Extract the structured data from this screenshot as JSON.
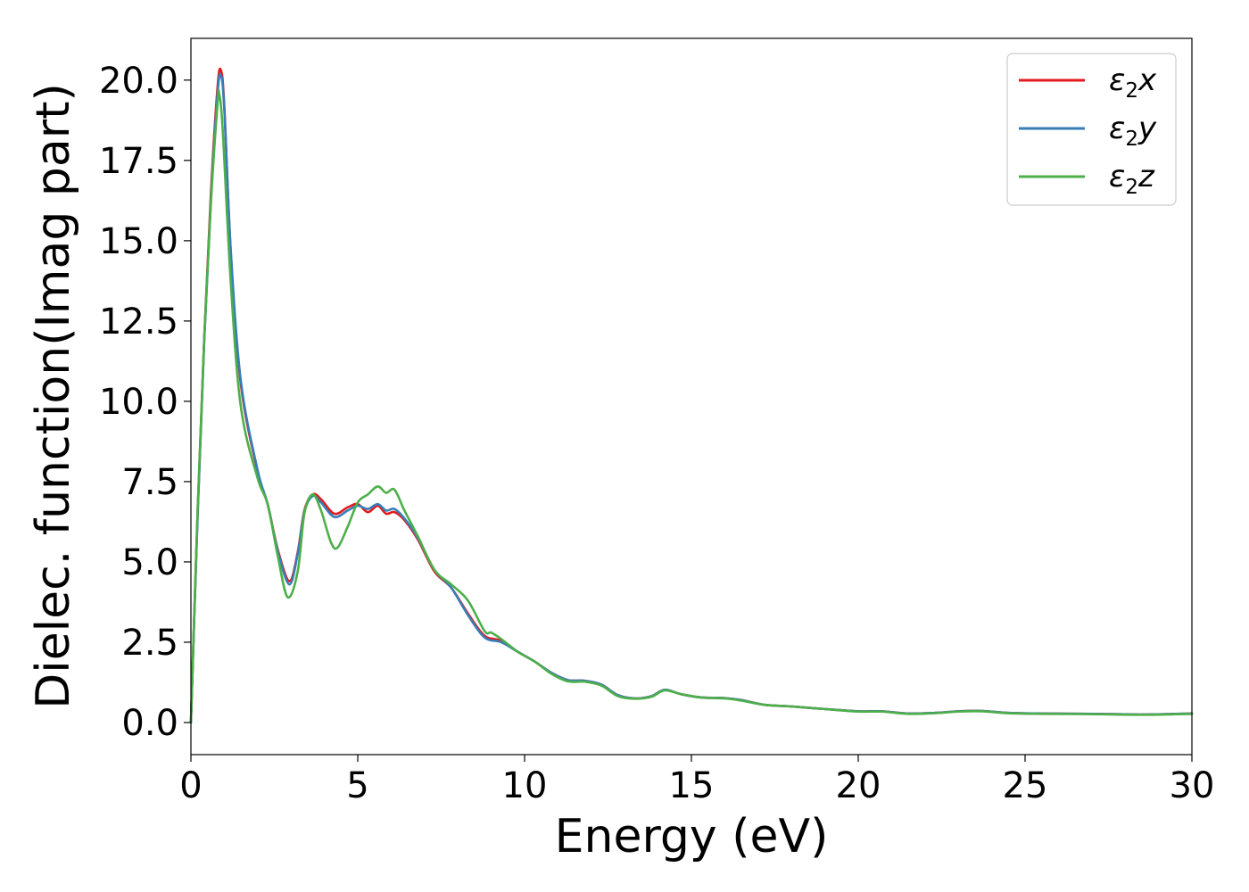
{
  "chart_data": {
    "type": "line",
    "title": "",
    "xlabel": "Energy (eV)",
    "ylabel": "Dielec. function(Imag part)",
    "xlim": [
      0,
      30
    ],
    "ylim": [
      -1.0,
      21.3
    ],
    "xticks": [
      0,
      5,
      10,
      15,
      20,
      25,
      30
    ],
    "xtick_labels": [
      "0",
      "5",
      "10",
      "15",
      "20",
      "25",
      "30"
    ],
    "yticks": [
      0,
      2.5,
      5,
      7.5,
      10,
      12.5,
      15,
      17.5,
      20
    ],
    "ytick_labels": [
      "0.0",
      "2.5",
      "5.0",
      "7.5",
      "10.0",
      "12.5",
      "15.0",
      "17.5",
      "20.0"
    ],
    "grid": false,
    "legend_position": "top-right",
    "series": [
      {
        "name": "ε₂x",
        "legend_base": "ε",
        "legend_sub": "2",
        "legend_suffix": "x",
        "color": "#e41a1c",
        "x": [
          0,
          0.2,
          0.4,
          0.6,
          0.8,
          0.9,
          1.0,
          1.2,
          1.5,
          2.0,
          2.3,
          2.6,
          2.95,
          3.2,
          3.4,
          3.65,
          3.9,
          4.3,
          4.7,
          5.0,
          5.3,
          5.6,
          5.85,
          6.1,
          6.4,
          6.8,
          7.3,
          7.8,
          8.3,
          8.8,
          9.3,
          9.8,
          10.3,
          10.8,
          11.3,
          11.8,
          12.3,
          12.8,
          13.3,
          13.8,
          14.2,
          14.7,
          15.3,
          16.0,
          16.5,
          17.2,
          18.0,
          19.0,
          20.0,
          20.7,
          21.5,
          22.3,
          23.0,
          23.7,
          24.5,
          25.5,
          27.0,
          28.5,
          30.0
        ],
        "y": [
          0.0,
          6.5,
          12.0,
          16.5,
          19.8,
          20.3,
          19.2,
          14.5,
          10.5,
          7.8,
          6.8,
          5.4,
          4.4,
          5.3,
          6.6,
          7.1,
          6.95,
          6.5,
          6.7,
          6.8,
          6.55,
          6.75,
          6.5,
          6.55,
          6.3,
          5.7,
          4.7,
          4.2,
          3.4,
          2.7,
          2.55,
          2.2,
          1.9,
          1.55,
          1.32,
          1.3,
          1.18,
          0.85,
          0.75,
          0.82,
          1.02,
          0.88,
          0.78,
          0.76,
          0.7,
          0.55,
          0.5,
          0.42,
          0.35,
          0.35,
          0.28,
          0.3,
          0.35,
          0.36,
          0.3,
          0.28,
          0.27,
          0.25,
          0.28
        ]
      },
      {
        "name": "ε₂y",
        "legend_base": "ε",
        "legend_sub": "2",
        "legend_suffix": "y",
        "color": "#377eb8",
        "x": [
          0,
          0.2,
          0.4,
          0.6,
          0.8,
          0.9,
          1.0,
          1.2,
          1.5,
          2.0,
          2.3,
          2.6,
          2.95,
          3.2,
          3.4,
          3.65,
          3.9,
          4.3,
          4.7,
          5.0,
          5.3,
          5.6,
          5.85,
          6.1,
          6.4,
          6.8,
          7.3,
          7.8,
          8.3,
          8.8,
          9.3,
          9.8,
          10.3,
          10.8,
          11.3,
          11.8,
          12.3,
          12.8,
          13.3,
          13.8,
          14.2,
          14.7,
          15.3,
          16.0,
          16.5,
          17.2,
          18.0,
          19.0,
          20.0,
          20.7,
          21.5,
          22.3,
          23.0,
          23.7,
          24.5,
          25.5,
          27.0,
          28.5,
          30.0
        ],
        "y": [
          0.0,
          6.4,
          11.9,
          16.3,
          19.6,
          20.15,
          19.1,
          14.6,
          10.6,
          7.85,
          6.8,
          5.35,
          4.3,
          5.25,
          6.55,
          7.05,
          6.85,
          6.4,
          6.6,
          6.75,
          6.65,
          6.8,
          6.6,
          6.65,
          6.35,
          5.75,
          4.75,
          4.2,
          3.35,
          2.65,
          2.5,
          2.2,
          1.9,
          1.55,
          1.32,
          1.3,
          1.18,
          0.85,
          0.75,
          0.82,
          1.02,
          0.88,
          0.78,
          0.76,
          0.7,
          0.55,
          0.5,
          0.42,
          0.35,
          0.35,
          0.28,
          0.3,
          0.35,
          0.36,
          0.3,
          0.28,
          0.27,
          0.25,
          0.28
        ]
      },
      {
        "name": "ε₂z",
        "legend_base": "ε",
        "legend_sub": "2",
        "legend_suffix": "z",
        "color": "#4daf4a",
        "x": [
          0,
          0.2,
          0.4,
          0.6,
          0.8,
          0.85,
          0.95,
          1.2,
          1.5,
          2.0,
          2.3,
          2.6,
          2.9,
          3.2,
          3.4,
          3.65,
          3.9,
          4.2,
          4.4,
          4.7,
          5.0,
          5.3,
          5.6,
          5.85,
          6.1,
          6.4,
          6.8,
          7.3,
          7.8,
          8.3,
          8.8,
          9.0,
          9.3,
          9.8,
          10.3,
          10.8,
          11.3,
          11.8,
          12.3,
          12.8,
          13.3,
          13.8,
          14.2,
          14.7,
          15.3,
          16.0,
          16.5,
          17.2,
          18.0,
          19.0,
          20.0,
          20.7,
          21.5,
          22.3,
          23.0,
          23.7,
          24.5,
          25.5,
          27.0,
          28.5,
          30.0
        ],
        "y": [
          0.0,
          6.6,
          12.0,
          16.2,
          19.3,
          19.55,
          18.5,
          13.6,
          9.8,
          7.6,
          6.8,
          5.2,
          3.9,
          4.7,
          6.5,
          7.1,
          6.6,
          5.6,
          5.45,
          6.1,
          6.85,
          7.1,
          7.35,
          7.15,
          7.25,
          6.6,
          5.8,
          4.75,
          4.3,
          3.8,
          2.85,
          2.8,
          2.6,
          2.2,
          1.9,
          1.52,
          1.28,
          1.27,
          1.15,
          0.82,
          0.74,
          0.8,
          1.0,
          0.88,
          0.78,
          0.75,
          0.68,
          0.55,
          0.5,
          0.42,
          0.34,
          0.34,
          0.27,
          0.29,
          0.34,
          0.35,
          0.29,
          0.27,
          0.26,
          0.24,
          0.27
        ]
      }
    ]
  }
}
